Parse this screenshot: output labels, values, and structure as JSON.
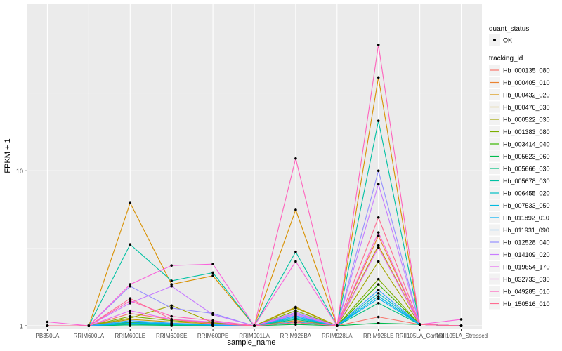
{
  "chart_data": {
    "type": "line",
    "xlabel": "sample_name",
    "ylabel": "FPKM + 1",
    "y_scale": "log10",
    "ylim": [
      0.95,
      120
    ],
    "y_ticks": [
      1,
      10
    ],
    "y_tick_labels": [
      "1",
      "10"
    ],
    "grid": true,
    "legend_position": "right",
    "categories": [
      "PB350LA",
      "RRIM600LA",
      "RRIM600LE",
      "RRIM600SE",
      "RRIM600PE",
      "RRIM901LA",
      "RRIM928BA",
      "RRIM928LA",
      "RRIM928LE",
      "RRII105LA_Control",
      "RRII105LA_Stressed"
    ],
    "legend_quant": {
      "title": "quant_status",
      "entries": [
        "OK"
      ]
    },
    "legend_series": {
      "title": "tracking_id"
    },
    "series": [
      {
        "name": "Hb_000135_080",
        "color": "#F8766D",
        "values": [
          1.0,
          1.0,
          1.2,
          1.1,
          1.05,
          1.0,
          1.05,
          1.0,
          1.14,
          1.02,
          1.0
        ]
      },
      {
        "name": "Hb_000405_010",
        "color": "#EA8331",
        "values": [
          1.0,
          1.0,
          1.05,
          1.03,
          1.02,
          1.0,
          1.08,
          1.0,
          3.8,
          1.02,
          1.0
        ]
      },
      {
        "name": "Hb_000432_020",
        "color": "#D89000",
        "values": [
          1.0,
          1.0,
          6.2,
          1.85,
          2.1,
          1.0,
          5.6,
          1.0,
          40.0,
          1.02,
          1.0
        ]
      },
      {
        "name": "Hb_000476_030",
        "color": "#C09B00",
        "values": [
          1.0,
          1.0,
          1.1,
          1.06,
          1.03,
          1.0,
          1.32,
          1.0,
          3.3,
          1.02,
          1.0
        ]
      },
      {
        "name": "Hb_000522_030",
        "color": "#A3A500",
        "values": [
          1.0,
          1.0,
          1.12,
          1.35,
          1.05,
          1.0,
          1.3,
          1.0,
          2.6,
          1.02,
          1.0
        ]
      },
      {
        "name": "Hb_001383_080",
        "color": "#7CAE00",
        "values": [
          1.0,
          1.0,
          1.15,
          1.08,
          1.04,
          1.0,
          1.25,
          1.0,
          2.0,
          1.02,
          1.0
        ]
      },
      {
        "name": "Hb_003414_040",
        "color": "#39B600",
        "values": [
          1.0,
          1.0,
          1.05,
          1.02,
          1.01,
          1.0,
          1.05,
          1.0,
          1.85,
          1.02,
          1.0
        ]
      },
      {
        "name": "Hb_005623_060",
        "color": "#00BB4E",
        "values": [
          1.0,
          1.0,
          1.0,
          1.0,
          1.0,
          1.0,
          1.02,
          1.0,
          1.04,
          1.02,
          1.0
        ]
      },
      {
        "name": "Hb_005666_030",
        "color": "#00BF7D",
        "values": [
          1.0,
          1.0,
          1.02,
          1.01,
          1.0,
          1.0,
          1.1,
          1.0,
          1.4,
          1.02,
          1.0
        ]
      },
      {
        "name": "Hb_005678_030",
        "color": "#00C1A3",
        "values": [
          1.0,
          1.0,
          3.35,
          1.95,
          2.2,
          1.0,
          3.0,
          1.0,
          21.0,
          1.02,
          1.0
        ]
      },
      {
        "name": "Hb_006455_020",
        "color": "#00BFC4",
        "values": [
          1.0,
          1.0,
          1.03,
          1.02,
          1.01,
          1.0,
          1.12,
          1.0,
          1.62,
          1.02,
          1.0
        ]
      },
      {
        "name": "Hb_007533_050",
        "color": "#00BAE0",
        "values": [
          1.0,
          1.0,
          1.06,
          1.03,
          1.02,
          1.0,
          1.14,
          1.0,
          1.55,
          1.02,
          1.0
        ]
      },
      {
        "name": "Hb_011892_010",
        "color": "#00B0F6",
        "values": [
          1.0,
          1.0,
          1.04,
          1.03,
          1.01,
          1.0,
          1.06,
          1.0,
          1.5,
          1.02,
          1.0
        ]
      },
      {
        "name": "Hb_011931_090",
        "color": "#35A2FF",
        "values": [
          1.0,
          1.0,
          1.08,
          1.04,
          1.02,
          1.0,
          1.16,
          1.0,
          1.7,
          1.02,
          1.0
        ]
      },
      {
        "name": "Hb_012528_040",
        "color": "#9590FF",
        "values": [
          1.0,
          1.0,
          1.8,
          1.3,
          1.2,
          1.0,
          1.2,
          1.0,
          10.0,
          1.02,
          1.0
        ]
      },
      {
        "name": "Hb_014109_020",
        "color": "#C77CFF",
        "values": [
          1.0,
          1.0,
          1.4,
          1.8,
          1.18,
          1.0,
          1.22,
          1.0,
          8.2,
          1.02,
          1.0
        ]
      },
      {
        "name": "Hb_019654_170",
        "color": "#E76BF3",
        "values": [
          1.0,
          1.0,
          1.25,
          1.1,
          1.06,
          1.0,
          1.18,
          1.0,
          3.2,
          1.02,
          1.0
        ]
      },
      {
        "name": "Hb_032733_030",
        "color": "#FA62DB",
        "values": [
          1.06,
          1.0,
          1.85,
          2.45,
          2.5,
          1.0,
          2.6,
          1.0,
          4.0,
          1.02,
          1.1
        ]
      },
      {
        "name": "Hb_049285_010",
        "color": "#FF62BC",
        "values": [
          1.0,
          1.0,
          1.45,
          1.15,
          1.08,
          1.0,
          12.0,
          1.0,
          65.0,
          1.02,
          1.0
        ]
      },
      {
        "name": "Hb_150516_010",
        "color": "#FF6C91",
        "values": [
          1.0,
          1.0,
          1.5,
          1.1,
          1.03,
          1.0,
          1.05,
          1.0,
          5.0,
          1.02,
          1.0
        ]
      }
    ]
  }
}
